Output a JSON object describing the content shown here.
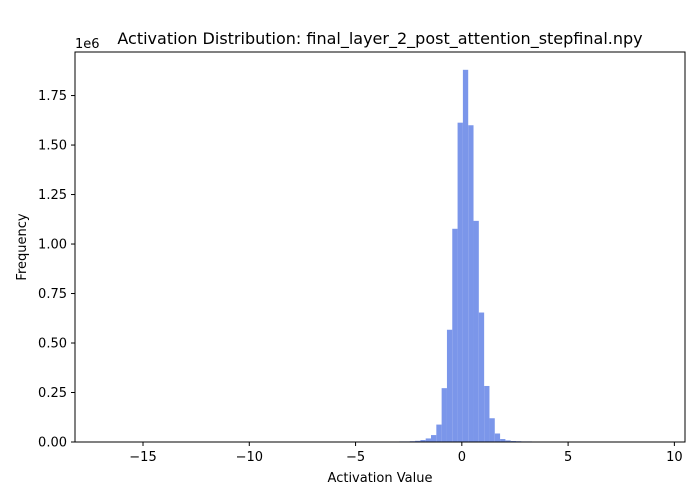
{
  "chart_data": {
    "type": "bar",
    "title": "Activation Distribution: final_layer_2_post_attention_stepfinal.npy",
    "xlabel": "Activation Value",
    "ylabel": "Frequency",
    "y_offset_label": "1e6",
    "xlim": [
      -18.2,
      10.5
    ],
    "ylim": [
      0,
      1.97
    ],
    "x_ticks": [
      -15,
      -10,
      -5,
      0,
      5,
      10
    ],
    "x_tick_labels": [
      "−15",
      "−10",
      "−5",
      "0",
      "5",
      "10"
    ],
    "y_ticks": [
      0,
      0.25,
      0.5,
      0.75,
      1.0,
      1.25,
      1.5,
      1.75
    ],
    "y_tick_labels": [
      "0.00",
      "0.25",
      "0.50",
      "0.75",
      "1.00",
      "1.25",
      "1.50",
      "1.75"
    ],
    "bar_color": "#7b96ea",
    "bins": [
      {
        "x0": -4.95,
        "x1": -4.7,
        "value": 0.002
      },
      {
        "x0": -3.95,
        "x1": -3.7,
        "value": 0.002
      },
      {
        "x0": -3.7,
        "x1": -3.45,
        "value": 0.002
      },
      {
        "x0": -3.45,
        "x1": -3.2,
        "value": 0.002
      },
      {
        "x0": -3.2,
        "x1": -2.95,
        "value": 0.002
      },
      {
        "x0": -2.95,
        "x1": -2.7,
        "value": 0.003
      },
      {
        "x0": -2.7,
        "x1": -2.45,
        "value": 0.003
      },
      {
        "x0": -2.45,
        "x1": -2.2,
        "value": 0.004
      },
      {
        "x0": -2.2,
        "x1": -1.95,
        "value": 0.006
      },
      {
        "x0": -1.95,
        "x1": -1.7,
        "value": 0.01
      },
      {
        "x0": -1.7,
        "x1": -1.45,
        "value": 0.018
      },
      {
        "x0": -1.45,
        "x1": -1.2,
        "value": 0.035
      },
      {
        "x0": -1.2,
        "x1": -0.95,
        "value": 0.088
      },
      {
        "x0": -0.95,
        "x1": -0.7,
        "value": 0.272
      },
      {
        "x0": -0.7,
        "x1": -0.45,
        "value": 0.567
      },
      {
        "x0": -0.45,
        "x1": -0.2,
        "value": 1.077
      },
      {
        "x0": -0.2,
        "x1": 0.05,
        "value": 1.613
      },
      {
        "x0": 0.05,
        "x1": 0.3,
        "value": 1.88
      },
      {
        "x0": 0.3,
        "x1": 0.55,
        "value": 1.6
      },
      {
        "x0": 0.55,
        "x1": 0.8,
        "value": 1.117
      },
      {
        "x0": 0.8,
        "x1": 1.05,
        "value": 0.654
      },
      {
        "x0": 1.05,
        "x1": 1.3,
        "value": 0.283
      },
      {
        "x0": 1.3,
        "x1": 1.55,
        "value": 0.12
      },
      {
        "x0": 1.55,
        "x1": 1.8,
        "value": 0.043
      },
      {
        "x0": 1.8,
        "x1": 2.05,
        "value": 0.015
      },
      {
        "x0": 2.05,
        "x1": 2.3,
        "value": 0.008
      },
      {
        "x0": 2.3,
        "x1": 2.55,
        "value": 0.005
      },
      {
        "x0": 2.55,
        "x1": 2.8,
        "value": 0.004
      },
      {
        "x0": 2.8,
        "x1": 3.05,
        "value": 0.003
      },
      {
        "x0": 3.05,
        "x1": 3.3,
        "value": 0.003
      },
      {
        "x0": 3.3,
        "x1": 3.55,
        "value": 0.002
      },
      {
        "x0": 3.55,
        "x1": 3.8,
        "value": 0.002
      }
    ],
    "grid": false,
    "legend": "none"
  }
}
